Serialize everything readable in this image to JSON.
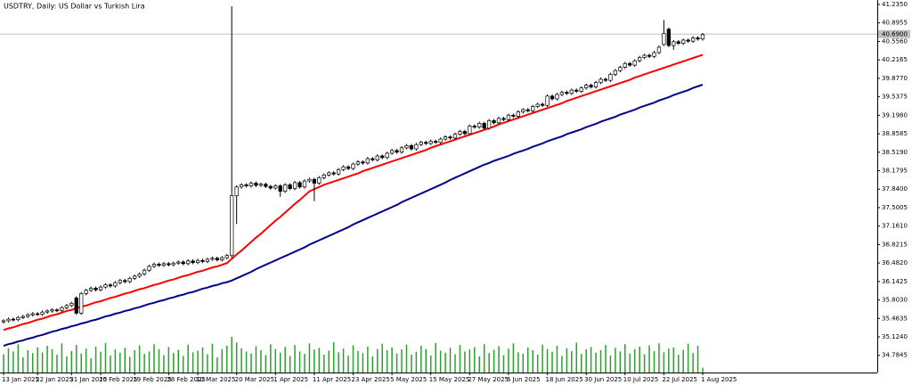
{
  "chart_data": {
    "type": "candlestick",
    "title": "USDTRY, Daily:  US Dollar vs Turkish Lira",
    "categories": [
      "13 Jan 2025",
      null,
      null,
      null,
      null,
      null,
      null,
      "22 Jan 2025",
      null,
      null,
      null,
      null,
      null,
      null,
      "31 Jan 2025",
      null,
      null,
      null,
      null,
      null,
      "10 Feb 2025",
      null,
      null,
      null,
      null,
      null,
      null,
      "19 Feb 2025",
      null,
      null,
      null,
      null,
      null,
      null,
      "28 Feb 2025",
      null,
      null,
      null,
      null,
      null,
      "10 Mar 2025",
      null,
      null,
      null,
      null,
      null,
      null,
      null,
      "20 Mar 2025",
      null,
      null,
      null,
      null,
      null,
      null,
      null,
      "1 Apr 2025",
      null,
      null,
      null,
      null,
      null,
      null,
      null,
      "11 Apr 2025",
      null,
      null,
      null,
      null,
      null,
      null,
      null,
      "23 Apr 2025",
      null,
      null,
      null,
      null,
      null,
      null,
      null,
      "5 May 2025",
      null,
      null,
      null,
      null,
      null,
      null,
      null,
      "15 May 2025",
      null,
      null,
      null,
      null,
      null,
      null,
      null,
      "27 May 2025",
      null,
      null,
      null,
      null,
      null,
      null,
      null,
      "6 Jun 2025",
      null,
      null,
      null,
      null,
      null,
      null,
      null,
      "18 Jun 2025",
      null,
      null,
      null,
      null,
      null,
      null,
      null,
      "30 Jun 2025",
      null,
      null,
      null,
      null,
      null,
      null,
      null,
      "10 Jul 2025",
      null,
      null,
      null,
      null,
      null,
      null,
      null,
      "22 Jul 2025",
      null,
      null,
      null,
      null,
      null,
      null,
      null,
      "1 Aug 2025"
    ],
    "open": [
      35.4,
      35.42,
      35.45,
      35.44,
      35.48,
      35.5,
      35.53,
      35.55,
      35.54,
      35.58,
      35.6,
      35.62,
      35.61,
      35.66,
      35.7,
      35.84,
      35.56,
      35.92,
      35.98,
      36.02,
      35.99,
      36.04,
      36.08,
      36.06,
      36.12,
      36.16,
      36.14,
      36.2,
      36.24,
      36.28,
      36.35,
      36.42,
      36.46,
      36.44,
      36.47,
      36.45,
      36.48,
      36.5,
      36.47,
      36.52,
      36.49,
      36.53,
      36.51,
      36.55,
      36.57,
      36.54,
      36.58,
      36.62,
      37.72,
      37.88,
      37.92,
      37.9,
      37.95,
      37.91,
      37.93,
      37.89,
      37.86,
      37.9,
      37.8,
      37.92,
      37.85,
      37.96,
      37.88,
      37.99,
      38.02,
      37.95,
      38.05,
      38.1,
      38.14,
      38.12,
      38.2,
      38.25,
      38.22,
      38.3,
      38.34,
      38.32,
      38.4,
      38.38,
      38.45,
      38.42,
      38.5,
      38.55,
      38.52,
      38.6,
      38.64,
      38.58,
      38.66,
      38.7,
      38.68,
      38.72,
      38.7,
      38.76,
      38.8,
      38.78,
      38.85,
      38.9,
      38.86,
      39.0,
      38.98,
      39.05,
      38.96,
      39.1,
      39.06,
      39.14,
      39.12,
      39.2,
      39.18,
      39.26,
      39.3,
      39.28,
      39.36,
      39.4,
      39.38,
      39.55,
      39.5,
      39.58,
      39.62,
      39.6,
      39.66,
      39.64,
      39.7,
      39.75,
      39.72,
      39.8,
      39.86,
      39.84,
      39.95,
      40.02,
      40.08,
      40.15,
      40.12,
      40.2,
      40.26,
      40.3,
      40.28,
      40.35,
      40.5,
      40.78,
      40.48,
      40.55,
      40.52,
      40.58,
      40.56,
      40.62,
      40.6
    ],
    "high": [
      35.45,
      35.48,
      35.48,
      35.51,
      35.53,
      35.56,
      35.58,
      35.58,
      35.61,
      35.63,
      35.65,
      35.65,
      35.69,
      35.73,
      35.77,
      35.87,
      35.95,
      36.01,
      36.05,
      36.05,
      36.07,
      36.11,
      36.11,
      36.15,
      36.19,
      36.19,
      36.23,
      36.27,
      36.31,
      36.38,
      36.45,
      36.49,
      36.49,
      36.5,
      36.5,
      36.51,
      36.53,
      36.53,
      36.55,
      36.55,
      36.56,
      36.56,
      36.58,
      36.6,
      36.6,
      36.61,
      36.65,
      41.2,
      37.91,
      37.95,
      37.95,
      37.98,
      37.98,
      37.96,
      37.96,
      37.92,
      37.93,
      37.93,
      37.95,
      37.95,
      37.99,
      37.99,
      38.02,
      38.05,
      38.05,
      38.08,
      38.13,
      38.17,
      38.17,
      38.23,
      38.28,
      38.28,
      38.33,
      38.37,
      38.37,
      38.43,
      38.43,
      38.48,
      38.48,
      38.53,
      38.58,
      38.58,
      38.63,
      38.67,
      38.67,
      38.69,
      38.73,
      38.73,
      38.75,
      38.75,
      38.79,
      38.83,
      38.83,
      38.88,
      38.93,
      38.93,
      39.03,
      39.03,
      39.08,
      39.08,
      39.13,
      39.13,
      39.17,
      39.17,
      39.23,
      39.23,
      39.29,
      39.33,
      39.33,
      39.39,
      39.43,
      39.43,
      39.58,
      39.58,
      39.61,
      39.65,
      39.65,
      39.69,
      39.69,
      39.73,
      39.78,
      39.78,
      39.83,
      39.89,
      39.89,
      39.98,
      40.05,
      40.11,
      40.18,
      40.18,
      40.23,
      40.29,
      40.33,
      40.33,
      40.38,
      40.48,
      40.95,
      40.81,
      40.58,
      40.58,
      40.61,
      40.61,
      40.65,
      40.65,
      40.71
    ],
    "low": [
      35.37,
      35.39,
      35.41,
      35.41,
      35.45,
      35.47,
      35.5,
      35.51,
      35.51,
      35.55,
      35.57,
      35.58,
      35.58,
      35.63,
      35.67,
      35.53,
      35.53,
      35.89,
      35.95,
      35.96,
      35.96,
      36.01,
      36.03,
      36.03,
      36.09,
      36.11,
      36.11,
      36.17,
      36.21,
      36.25,
      36.32,
      36.39,
      36.41,
      36.41,
      36.42,
      36.42,
      36.45,
      36.44,
      36.44,
      36.46,
      36.46,
      36.48,
      36.48,
      36.52,
      36.51,
      36.51,
      36.55,
      36.58,
      37.2,
      37.85,
      37.87,
      37.87,
      37.88,
      37.88,
      37.86,
      37.83,
      37.83,
      37.7,
      37.77,
      37.82,
      37.82,
      37.85,
      37.85,
      37.96,
      37.62,
      37.92,
      38.02,
      38.07,
      38.09,
      38.09,
      38.17,
      38.19,
      38.19,
      38.27,
      38.29,
      38.29,
      38.35,
      38.35,
      38.39,
      38.39,
      38.47,
      38.49,
      38.49,
      38.57,
      38.55,
      38.55,
      38.63,
      38.65,
      38.65,
      38.67,
      38.67,
      38.73,
      38.75,
      38.75,
      38.82,
      38.83,
      38.83,
      38.95,
      38.95,
      38.93,
      38.93,
      39.03,
      39.03,
      39.09,
      39.09,
      39.15,
      39.15,
      39.23,
      39.25,
      39.25,
      39.33,
      39.35,
      39.35,
      39.47,
      39.47,
      39.55,
      39.57,
      39.57,
      39.61,
      39.61,
      39.67,
      39.69,
      39.69,
      39.77,
      39.81,
      39.81,
      39.92,
      39.99,
      40.05,
      40.09,
      40.09,
      40.17,
      40.23,
      40.25,
      40.25,
      40.32,
      40.47,
      40.45,
      40.4,
      40.49,
      40.49,
      40.53,
      40.53,
      40.57,
      40.57
    ],
    "close": [
      35.42,
      35.45,
      35.44,
      35.48,
      35.5,
      35.53,
      35.55,
      35.54,
      35.58,
      35.6,
      35.62,
      35.61,
      35.66,
      35.7,
      35.74,
      35.56,
      35.92,
      35.98,
      36.02,
      35.99,
      36.04,
      36.08,
      36.06,
      36.12,
      36.16,
      36.14,
      36.2,
      36.24,
      36.28,
      36.35,
      36.42,
      36.46,
      36.44,
      36.47,
      36.45,
      36.48,
      36.5,
      36.47,
      36.52,
      36.49,
      36.53,
      36.51,
      36.55,
      36.57,
      36.54,
      36.58,
      36.62,
      37.72,
      37.88,
      37.92,
      37.9,
      37.95,
      37.91,
      37.93,
      37.89,
      37.86,
      37.9,
      37.8,
      37.92,
      37.85,
      37.96,
      37.88,
      37.99,
      38.02,
      37.95,
      38.05,
      38.1,
      38.14,
      38.12,
      38.2,
      38.25,
      38.22,
      38.3,
      38.34,
      38.32,
      38.4,
      38.38,
      38.45,
      38.42,
      38.5,
      38.55,
      38.52,
      38.6,
      38.64,
      38.58,
      38.66,
      38.7,
      38.68,
      38.72,
      38.7,
      38.76,
      38.8,
      38.78,
      38.85,
      38.9,
      38.86,
      39.0,
      38.98,
      39.05,
      38.96,
      39.1,
      39.06,
      39.14,
      39.12,
      39.2,
      39.18,
      39.26,
      39.3,
      39.28,
      39.36,
      39.4,
      39.38,
      39.55,
      39.5,
      39.58,
      39.62,
      39.6,
      39.66,
      39.64,
      39.7,
      39.75,
      39.72,
      39.8,
      39.86,
      39.84,
      39.95,
      40.02,
      40.08,
      40.15,
      40.12,
      40.2,
      40.26,
      40.3,
      40.28,
      40.35,
      40.45,
      40.7,
      40.48,
      40.55,
      40.52,
      40.58,
      40.56,
      40.62,
      40.6,
      40.68
    ],
    "up_color": "#ffffff",
    "down_color": "#000000",
    "moving_averages": [
      {
        "color": "#ff0000",
        "values": [
          35.25,
          35.28,
          35.3,
          35.33,
          35.36,
          35.38,
          35.41,
          35.44,
          35.46,
          35.49,
          35.52,
          35.54,
          35.57,
          35.6,
          35.62,
          35.65,
          35.68,
          35.7,
          35.73,
          35.76,
          35.78,
          35.81,
          35.84,
          35.86,
          35.89,
          35.92,
          35.94,
          35.97,
          36.0,
          36.02,
          36.05,
          36.08,
          36.1,
          36.13,
          36.16,
          36.18,
          36.21,
          36.24,
          36.26,
          36.29,
          36.32,
          36.34,
          36.37,
          36.4,
          36.42,
          36.45,
          36.48,
          36.56,
          36.64,
          36.71,
          36.79,
          36.87,
          36.95,
          37.02,
          37.1,
          37.18,
          37.26,
          37.33,
          37.41,
          37.49,
          37.57,
          37.64,
          37.72,
          37.8,
          37.84,
          37.88,
          37.92,
          37.95,
          37.98,
          38.01,
          38.04,
          38.07,
          38.1,
          38.13,
          38.17,
          38.2,
          38.23,
          38.26,
          38.29,
          38.32,
          38.35,
          38.38,
          38.41,
          38.44,
          38.47,
          38.5,
          38.53,
          38.56,
          38.6,
          38.63,
          38.66,
          38.69,
          38.72,
          38.75,
          38.78,
          38.81,
          38.84,
          38.87,
          38.9,
          38.93,
          38.96,
          38.99,
          39.03,
          39.06,
          39.09,
          39.12,
          39.15,
          39.18,
          39.21,
          39.24,
          39.27,
          39.3,
          39.33,
          39.36,
          39.39,
          39.42,
          39.46,
          39.49,
          39.52,
          39.55,
          39.58,
          39.61,
          39.64,
          39.67,
          39.7,
          39.73,
          39.76,
          39.79,
          39.82,
          39.85,
          39.89,
          39.92,
          39.95,
          39.98,
          40.01,
          40.04,
          40.07,
          40.1,
          40.13,
          40.16,
          40.19,
          40.22,
          40.25,
          40.28,
          40.31
        ]
      },
      {
        "color": "#00008b",
        "values": [
          34.96,
          34.99,
          35.01,
          35.04,
          35.06,
          35.09,
          35.11,
          35.14,
          35.16,
          35.19,
          35.22,
          35.24,
          35.27,
          35.29,
          35.32,
          35.34,
          35.37,
          35.39,
          35.42,
          35.44,
          35.47,
          35.5,
          35.52,
          35.55,
          35.57,
          35.6,
          35.62,
          35.65,
          35.67,
          35.7,
          35.73,
          35.75,
          35.78,
          35.8,
          35.83,
          35.85,
          35.88,
          35.9,
          35.93,
          35.95,
          35.98,
          36.01,
          36.03,
          36.06,
          36.08,
          36.11,
          36.13,
          36.16,
          36.2,
          36.24,
          36.28,
          36.32,
          36.37,
          36.41,
          36.45,
          36.49,
          36.53,
          36.57,
          36.61,
          36.65,
          36.69,
          36.73,
          36.77,
          36.82,
          36.86,
          36.9,
          36.94,
          36.98,
          37.02,
          37.06,
          37.1,
          37.14,
          37.19,
          37.23,
          37.27,
          37.31,
          37.35,
          37.39,
          37.43,
          37.47,
          37.51,
          37.55,
          37.6,
          37.64,
          37.68,
          37.72,
          37.76,
          37.8,
          37.84,
          37.88,
          37.92,
          37.96,
          38.01,
          38.05,
          38.09,
          38.13,
          38.17,
          38.21,
          38.25,
          38.29,
          38.32,
          38.36,
          38.39,
          38.42,
          38.45,
          38.49,
          38.52,
          38.55,
          38.58,
          38.62,
          38.65,
          38.68,
          38.72,
          38.75,
          38.78,
          38.81,
          38.85,
          38.88,
          38.91,
          38.94,
          38.98,
          39.01,
          39.04,
          39.08,
          39.11,
          39.14,
          39.17,
          39.21,
          39.24,
          39.27,
          39.3,
          39.34,
          39.37,
          39.4,
          39.43,
          39.47,
          39.5,
          39.53,
          39.57,
          39.6,
          39.63,
          39.66,
          39.7,
          39.73,
          39.76
        ]
      }
    ],
    "volume": {
      "color": "#2ca02c",
      "values": [
        45,
        60,
        52,
        70,
        38,
        55,
        48,
        62,
        50,
        66,
        58,
        44,
        72,
        40,
        53,
        68,
        47,
        59,
        35,
        64,
        51,
        73,
        42,
        57,
        49,
        61,
        39,
        55,
        67,
        46,
        52,
        70,
        58,
        43,
        63,
        48,
        56,
        41,
        69,
        50,
        54,
        62,
        45,
        71,
        37,
        58,
        66,
        88,
        74,
        60,
        52,
        47,
        65,
        55,
        43,
        70,
        58,
        49,
        63,
        41,
        68,
        52,
        46,
        72,
        57,
        61,
        44,
        54,
        75,
        50,
        59,
        42,
        67,
        53,
        48,
        64,
        40,
        58,
        71,
        55,
        62,
        47,
        57,
        69,
        44,
        51,
        66,
        58,
        42,
        73,
        54,
        49,
        61,
        45,
        68,
        52,
        57,
        63,
        40,
        70,
        48,
        56,
        65,
        43,
        59,
        72,
        50,
        47,
        62,
        55,
        44,
        69,
        58,
        51,
        66,
        41,
        60,
        53,
        74,
        46,
        57,
        63,
        49,
        55,
        68,
        42,
        61,
        52,
        70,
        47,
        58,
        64,
        45,
        67,
        53,
        72,
        50,
        59,
        62,
        44,
        56,
        71,
        48,
        66,
        12
      ]
    },
    "price_line": {
      "value": 40.69,
      "label": "40.6900"
    },
    "ylim": [
      34.469,
      41.317
    ],
    "yticks": [
      {
        "value": 41.235,
        "label": "41.2350"
      },
      40.8955,
      {
        "value": 40.556,
        "label": "40.5560"
      },
      40.2165,
      {
        "value": 39.877,
        "label": "39.8770"
      },
      39.5375,
      {
        "value": 39.198,
        "label": "39.1980"
      },
      38.8585,
      {
        "value": 38.519,
        "label": "38.5190"
      },
      38.1795,
      {
        "value": 37.84,
        "label": "37.8400"
      },
      37.5005,
      {
        "value": 37.161,
        "label": "37.1610"
      },
      36.8215,
      {
        "value": 36.482,
        "label": "36.4820"
      },
      36.1425,
      {
        "value": 35.803,
        "label": "35.8030"
      },
      35.4635,
      {
        "value": 35.124,
        "label": "35.1240"
      },
      34.7845
    ],
    "grid": false
  }
}
